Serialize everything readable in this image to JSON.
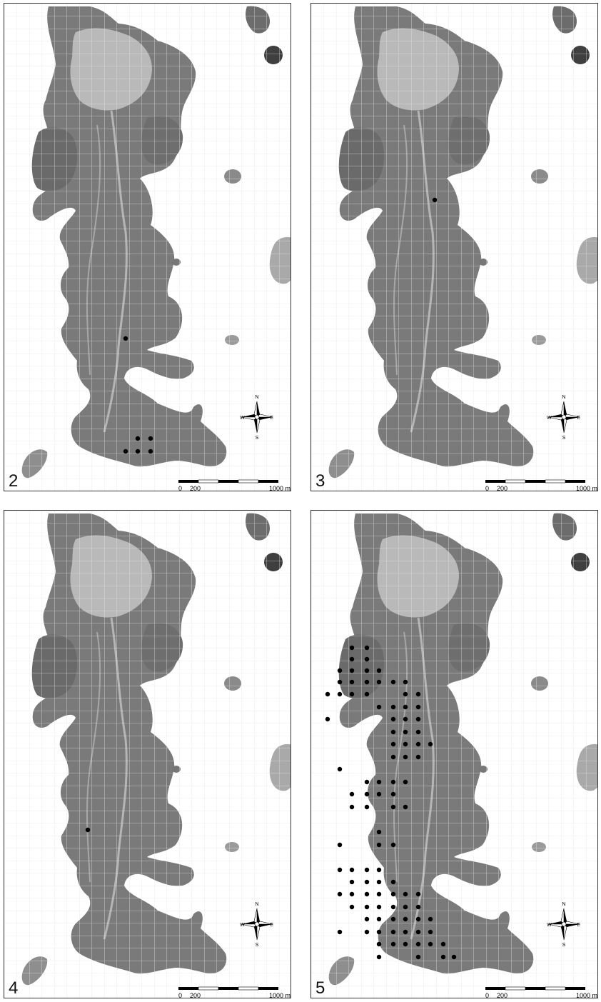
{
  "panels": [
    {
      "number": "2",
      "site_dots": [
        [
          170,
          469
        ],
        [
          187,
          609
        ],
        [
          205,
          609
        ],
        [
          170,
          627
        ],
        [
          187,
          627
        ],
        [
          205,
          627
        ]
      ]
    },
    {
      "number": "3",
      "site_dots": [
        [
          173,
          275
        ]
      ]
    },
    {
      "number": "4",
      "site_dots": [
        [
          117,
          447
        ]
      ]
    },
    {
      "number": "5",
      "site_dots": [
        [
          57,
          192
        ],
        [
          78,
          192
        ],
        [
          57,
          208
        ],
        [
          78,
          208
        ],
        [
          40,
          224
        ],
        [
          57,
          224
        ],
        [
          78,
          224
        ],
        [
          95,
          224
        ],
        [
          40,
          240
        ],
        [
          57,
          240
        ],
        [
          78,
          240
        ],
        [
          95,
          240
        ],
        [
          23,
          257
        ],
        [
          40,
          257
        ],
        [
          57,
          257
        ],
        [
          78,
          257
        ],
        [
          115,
          240
        ],
        [
          132,
          240
        ],
        [
          132,
          257
        ],
        [
          150,
          257
        ],
        [
          95,
          275
        ],
        [
          115,
          275
        ],
        [
          132,
          275
        ],
        [
          150,
          275
        ],
        [
          23,
          292
        ],
        [
          115,
          292
        ],
        [
          132,
          292
        ],
        [
          150,
          292
        ],
        [
          115,
          310
        ],
        [
          132,
          310
        ],
        [
          150,
          310
        ],
        [
          115,
          327
        ],
        [
          132,
          327
        ],
        [
          150,
          327
        ],
        [
          167,
          327
        ],
        [
          40,
          362
        ],
        [
          115,
          345
        ],
        [
          132,
          345
        ],
        [
          150,
          345
        ],
        [
          78,
          380
        ],
        [
          95,
          380
        ],
        [
          115,
          380
        ],
        [
          132,
          380
        ],
        [
          57,
          397
        ],
        [
          78,
          397
        ],
        [
          95,
          397
        ],
        [
          115,
          397
        ],
        [
          57,
          415
        ],
        [
          78,
          415
        ],
        [
          115,
          415
        ],
        [
          132,
          415
        ],
        [
          95,
          450
        ],
        [
          40,
          468
        ],
        [
          95,
          468
        ],
        [
          115,
          468
        ],
        [
          40,
          503
        ],
        [
          57,
          503
        ],
        [
          78,
          503
        ],
        [
          95,
          503
        ],
        [
          57,
          520
        ],
        [
          78,
          520
        ],
        [
          95,
          520
        ],
        [
          115,
          520
        ],
        [
          40,
          537
        ],
        [
          57,
          537
        ],
        [
          78,
          537
        ],
        [
          95,
          537
        ],
        [
          115,
          537
        ],
        [
          132,
          537
        ],
        [
          150,
          537
        ],
        [
          57,
          555
        ],
        [
          78,
          555
        ],
        [
          95,
          555
        ],
        [
          115,
          555
        ],
        [
          132,
          555
        ],
        [
          150,
          555
        ],
        [
          78,
          572
        ],
        [
          95,
          572
        ],
        [
          115,
          572
        ],
        [
          132,
          572
        ],
        [
          150,
          572
        ],
        [
          167,
          572
        ],
        [
          40,
          590
        ],
        [
          78,
          590
        ],
        [
          95,
          590
        ],
        [
          115,
          590
        ],
        [
          132,
          590
        ],
        [
          150,
          590
        ],
        [
          167,
          590
        ],
        [
          95,
          607
        ],
        [
          115,
          607
        ],
        [
          132,
          607
        ],
        [
          150,
          607
        ],
        [
          167,
          607
        ],
        [
          185,
          607
        ],
        [
          95,
          625
        ],
        [
          150,
          625
        ],
        [
          185,
          625
        ],
        [
          200,
          625
        ]
      ]
    }
  ],
  "scale": {
    "ticks": [
      "0",
      "200",
      "1000 m"
    ]
  },
  "compass": {
    "n": "N",
    "e": "E",
    "s": "S",
    "w": "W"
  },
  "colors": {
    "grid": "#d8d8d8",
    "dot": "#000000"
  }
}
